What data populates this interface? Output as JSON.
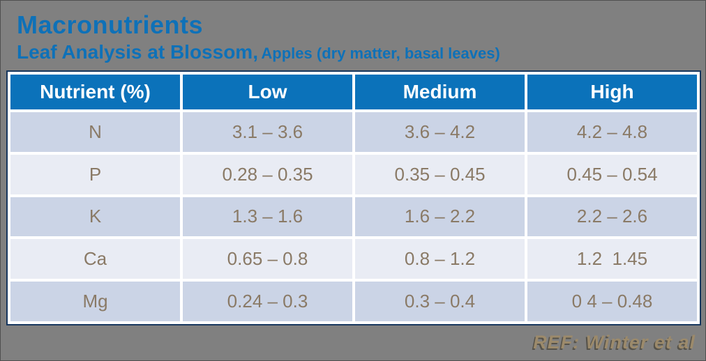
{
  "page": {
    "title": "Macronutrients",
    "subtitle_main": "Leaf Analysis at Blossom,",
    "subtitle_detail": "Apples (dry matter, basal leaves)",
    "reference": "REF: Winter et al"
  },
  "colors": {
    "background": "#808080",
    "title_blue": "#0e71b8",
    "header_blue": "#0b72ba",
    "row_odd": "#cbd4e6",
    "row_even": "#e9ecf4",
    "cell_text": "#8a7a66",
    "reference_tan": "#9c8a6b",
    "table_outline_navy": "#17375e"
  },
  "table": {
    "headers": [
      "Nutrient (%)",
      "Low",
      "Medium",
      "High"
    ],
    "rows": [
      {
        "nutrient": "N",
        "low": "3.1 – 3.6",
        "medium": "3.6 – 4.2",
        "high": "4.2 – 4.8"
      },
      {
        "nutrient": "P",
        "low": "0.28 – 0.35",
        "medium": "0.35 – 0.45",
        "high": "0.45 – 0.54"
      },
      {
        "nutrient": "K",
        "low": "1.3 – 1.6",
        "medium": "1.6 – 2.2",
        "high": "2.2 – 2.6"
      },
      {
        "nutrient": "Ca",
        "low": "0.65 – 0.8",
        "medium": "0.8 – 1.2",
        "high": "1.2  1.45"
      },
      {
        "nutrient": "Mg",
        "low": "0.24 – 0.3",
        "medium": "0.3 – 0.4",
        "high": "0 4 – 0.48"
      }
    ]
  }
}
